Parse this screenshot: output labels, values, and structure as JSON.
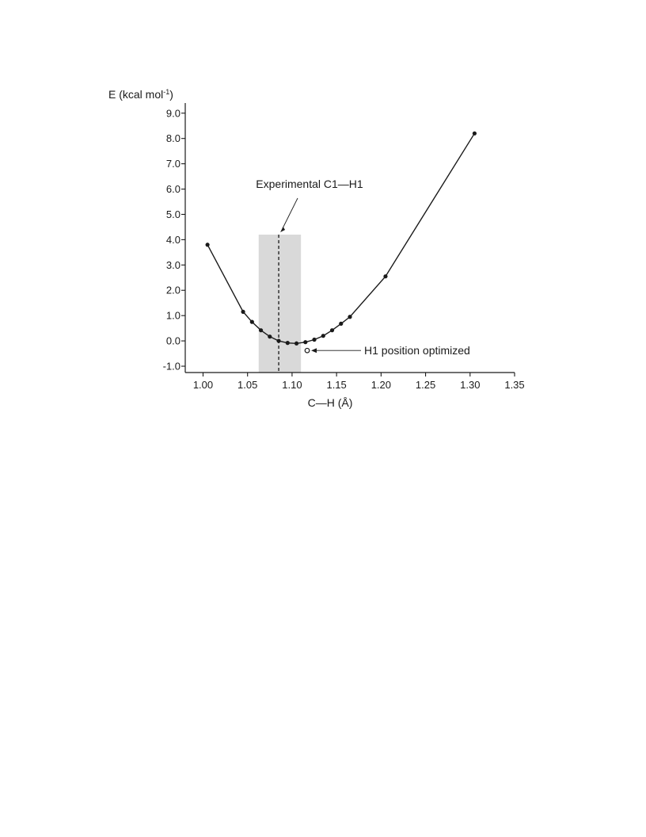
{
  "chart_data": {
    "type": "line",
    "ylabel_main": "E (kcal mol",
    "ylabel_sup": "-1",
    "ylabel_close": ")",
    "xlabel": "C—H (Å)",
    "xlim": [
      0.98,
      1.35
    ],
    "ylim": [
      -1.25,
      9.4
    ],
    "x_ticks": [
      1.0,
      1.05,
      1.1,
      1.15,
      1.2,
      1.25,
      1.3,
      1.35
    ],
    "x_tick_labels": [
      "1.00",
      "1.05",
      "1.10",
      "1.15",
      "1.20",
      "1.25",
      "1.30",
      "1.35"
    ],
    "y_ticks": [
      -1.0,
      0.0,
      1.0,
      2.0,
      3.0,
      4.0,
      5.0,
      6.0,
      7.0,
      8.0,
      9.0
    ],
    "y_tick_labels": [
      "-1.0",
      "0.0",
      "1.0",
      "2.0",
      "3.0",
      "4.0",
      "5.0",
      "6.0",
      "7.0",
      "8.0",
      "9.0"
    ],
    "series": [
      {
        "x": [
          1.005,
          1.045,
          1.055,
          1.065,
          1.075,
          1.085,
          1.095,
          1.105,
          1.115,
          1.125,
          1.135,
          1.145,
          1.155,
          1.165,
          1.205,
          1.305
        ],
        "y": [
          3.8,
          1.15,
          0.75,
          0.42,
          0.17,
          0.0,
          -0.08,
          -0.1,
          -0.05,
          0.05,
          0.2,
          0.42,
          0.68,
          0.95,
          2.55,
          8.2
        ]
      }
    ],
    "shaded_band": {
      "x": [
        1.0625,
        1.11
      ],
      "y_top": 4.2
    },
    "experimental_line": {
      "x": 1.085,
      "y_top": 4.2
    },
    "optimized_point": {
      "x": 1.117,
      "y": -0.38
    },
    "annotations": {
      "experimental": "Experimental C1—H1",
      "optimized": "H1 position optimized"
    },
    "grid": false,
    "legend": "none"
  }
}
